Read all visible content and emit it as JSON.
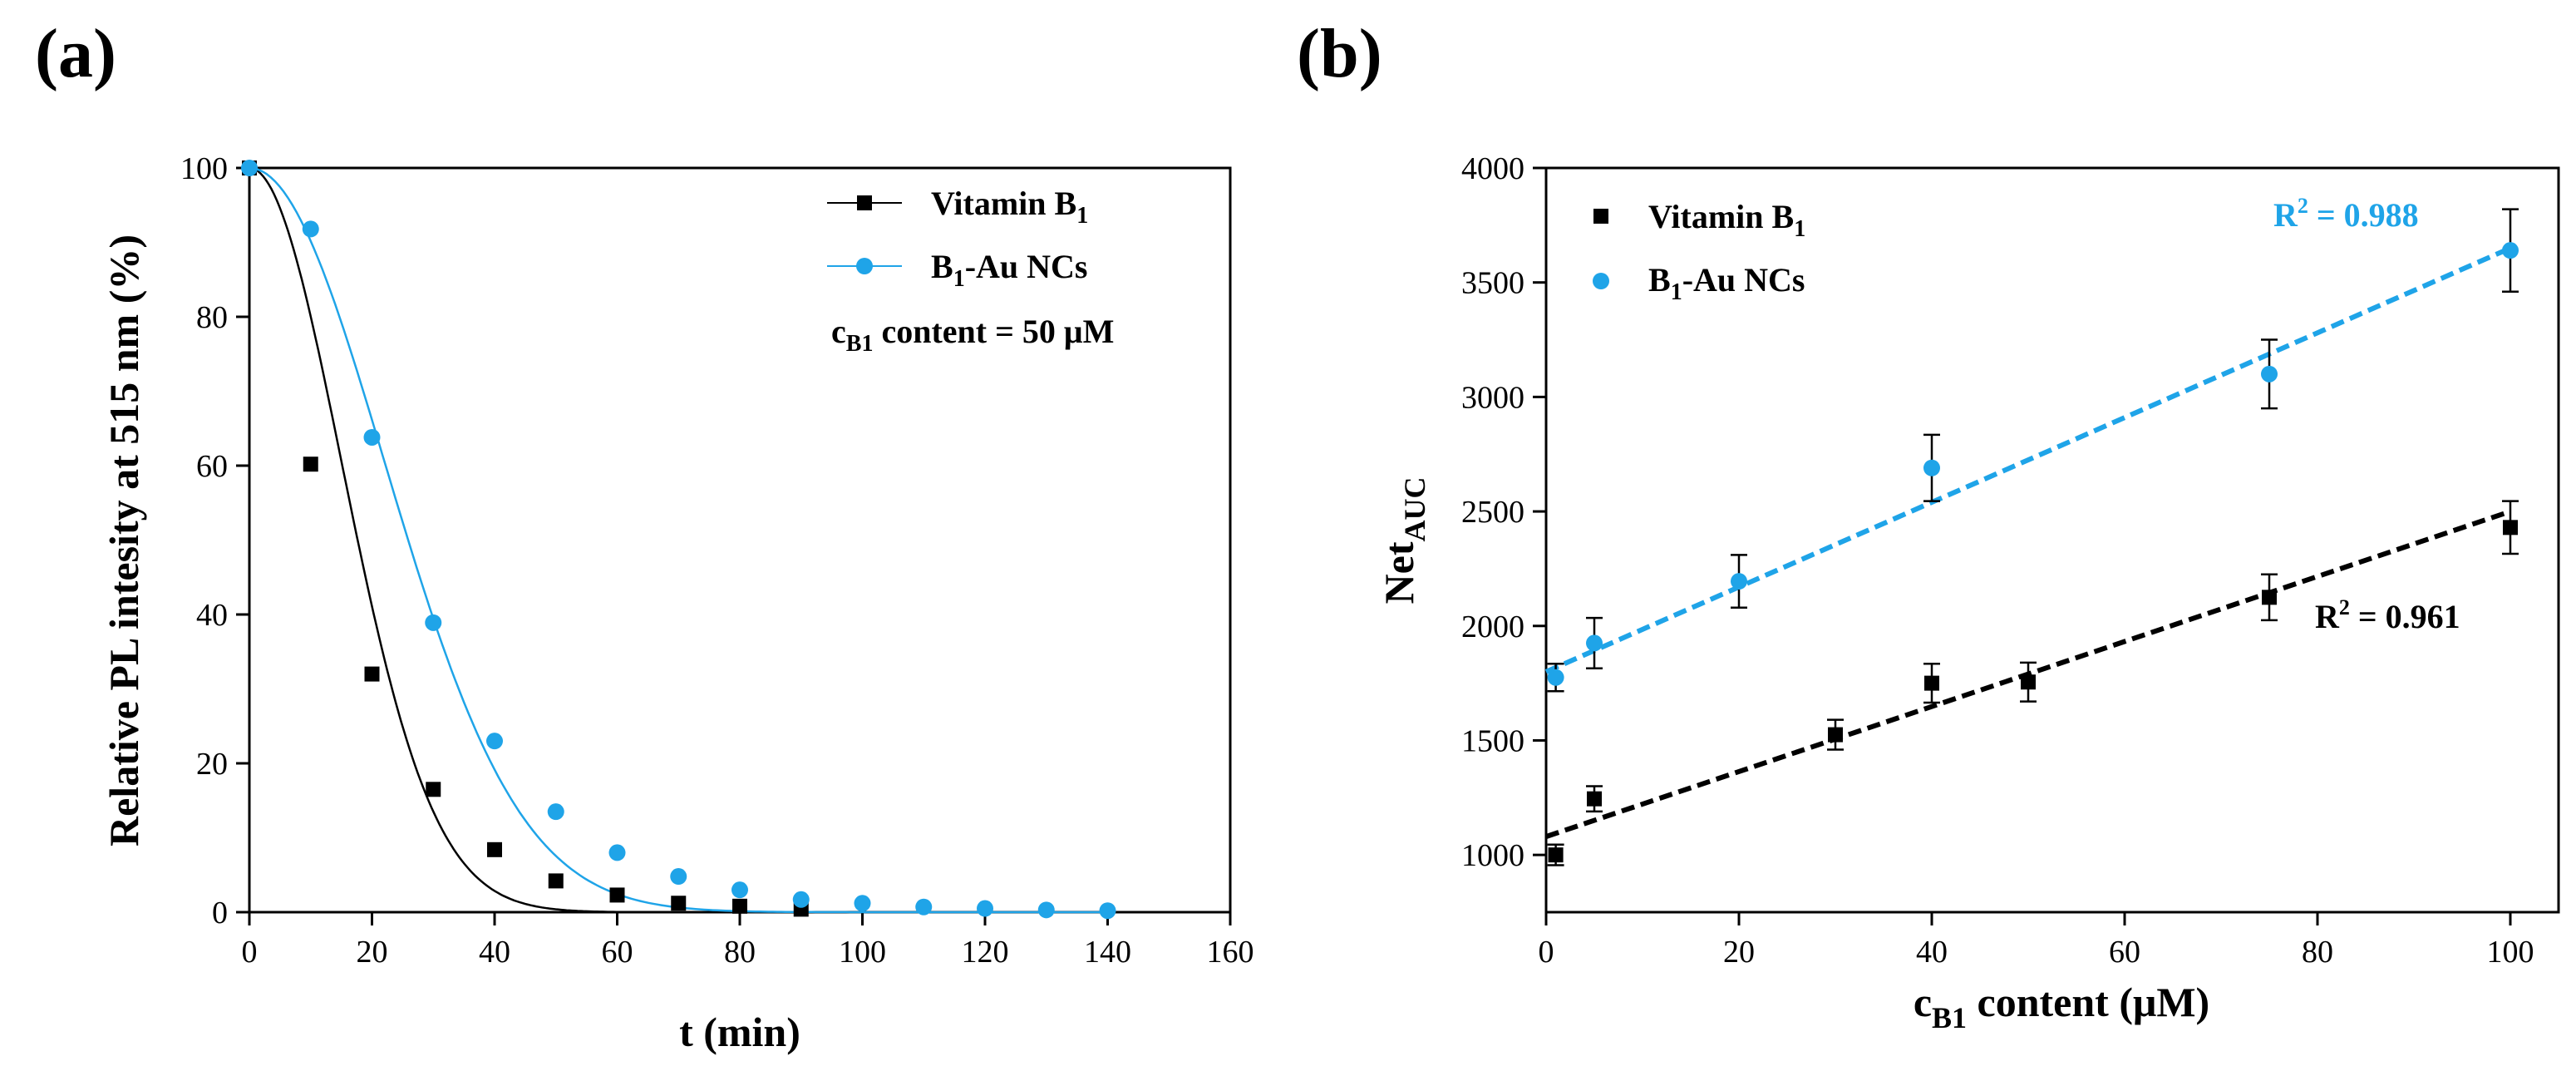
{
  "panels": {
    "a": {
      "label": "(a)"
    },
    "b": {
      "label": "(b)"
    }
  },
  "colors": {
    "black": "#000000",
    "blue": "#1fa4e8"
  },
  "chart_data": [
    {
      "id": "a",
      "type": "line",
      "xlabel": "t (min)",
      "ylabel": "Relative PL intesity at 515 nm (%)",
      "xlim": [
        0,
        160
      ],
      "ylim": [
        0,
        100
      ],
      "xticks": [
        0,
        20,
        40,
        60,
        80,
        100,
        120,
        140,
        160
      ],
      "yticks": [
        0,
        20,
        40,
        60,
        80,
        100
      ],
      "annotation": {
        "c_main": "c",
        "c_sub": "B1",
        "rest": " content = 50 μM"
      },
      "series": [
        {
          "name": "Vitamin B1",
          "name_main": "Vitamin B",
          "name_sub": "1",
          "color": "#000000",
          "marker": "square",
          "x": [
            0,
            10,
            20,
            30,
            40,
            50,
            60,
            70,
            80,
            90
          ],
          "y": [
            100,
            60.2,
            32,
            16.5,
            8.4,
            4.2,
            2.3,
            1.2,
            0.8,
            0.4
          ],
          "fit": {
            "model": "gaussian_decay",
            "y0": 100,
            "sigma": 15.0,
            "xmax": 90
          }
        },
        {
          "name": "B1-Au NCs",
          "name_main": "B",
          "name_sub": "1",
          "name_rest": "-Au NCs",
          "color": "#1fa4e8",
          "marker": "circle",
          "x": [
            0,
            10,
            20,
            30,
            40,
            50,
            60,
            70,
            80,
            90,
            100,
            110,
            120,
            130,
            140
          ],
          "y": [
            100,
            91.8,
            63.8,
            38.9,
            23,
            13.5,
            8,
            4.8,
            3,
            1.7,
            1.2,
            0.7,
            0.5,
            0.3,
            0.2
          ],
          "fit": {
            "model": "gaussian_decay",
            "y0": 100,
            "sigma": 22.0,
            "xmax": 140
          }
        }
      ]
    },
    {
      "id": "b",
      "type": "scatter",
      "xlabel_main": "c",
      "xlabel_sub": "B1",
      "xlabel_rest": " content (μM)",
      "ylabel_main": "Net",
      "ylabel_sub": "AUC",
      "xlim": [
        0,
        105
      ],
      "ylim": [
        750,
        4000
      ],
      "xticks": [
        0,
        20,
        40,
        60,
        80,
        100
      ],
      "yticks": [
        1000,
        1500,
        2000,
        2500,
        3000,
        3500,
        4000
      ],
      "series": [
        {
          "name": "Vitamin B1",
          "name_main": "Vitamin B",
          "name_sub": "1",
          "color": "#000000",
          "marker": "square",
          "x": [
            1,
            5,
            30,
            40,
            50,
            75,
            100
          ],
          "y": [
            1000,
            1245,
            1525,
            1750,
            1755,
            2125,
            2430
          ],
          "err": [
            45,
            55,
            65,
            85,
            85,
            100,
            115
          ],
          "fit": {
            "slope": 14.2,
            "intercept": 1080,
            "x": [
              0,
              100
            ]
          },
          "r2_label": "R",
          "r2_sup": "2",
          "r2_value": " = 0.961"
        },
        {
          "name": "B1-Au NCs",
          "name_main": "B",
          "name_sub": "1",
          "name_rest": "-Au NCs",
          "color": "#1fa4e8",
          "marker": "circle",
          "x": [
            1,
            5,
            20,
            40,
            75,
            100
          ],
          "y": [
            1775,
            1925,
            2195,
            2690,
            3100,
            3640
          ],
          "err": [
            60,
            110,
            115,
            145,
            150,
            180
          ],
          "fit": {
            "slope": 18.5,
            "intercept": 1800,
            "x": [
              0,
              100
            ]
          },
          "r2_label": "R",
          "r2_sup": "2",
          "r2_value": " = 0.988"
        }
      ]
    }
  ]
}
